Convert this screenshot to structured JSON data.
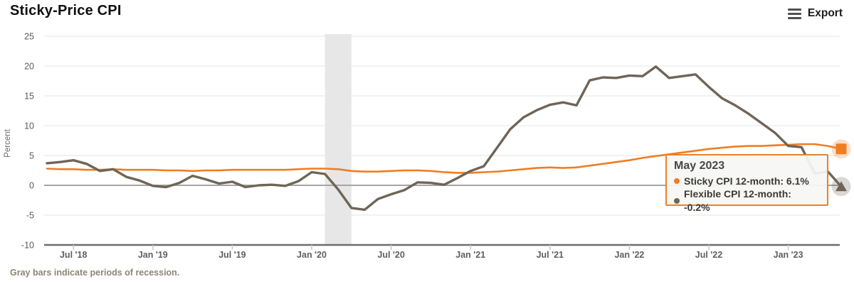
{
  "header": {
    "title": "Sticky-Price CPI",
    "export_label": "Export"
  },
  "footer": {
    "note": "Gray bars indicate periods of recession."
  },
  "tooltip": {
    "title": "May 2023",
    "items": [
      {
        "series": "Sticky CPI 12-month",
        "value": "6.1%",
        "text": "Sticky CPI 12-month: 6.1%",
        "color": "#ef7d23"
      },
      {
        "series": "Flexible CPI 12-month",
        "value": "-0.2%",
        "text": "Flexible CPI 12-month: -0.2%",
        "color": "#6e6558"
      }
    ]
  },
  "colors": {
    "grid": "#e4e4e4",
    "zero_line": "#a5a5a5",
    "axis": "#6d6d6d",
    "tick": "#c9c9c9",
    "recession": "#e7e7e7",
    "y_label": "#5a5a5a",
    "x_label": "#5f5f5f",
    "axis_title": "#6a6a6a"
  },
  "chart_data": {
    "type": "line",
    "title": "Sticky-Price CPI",
    "ylabel": "Percent",
    "xlabel": "",
    "ylim": [
      -10,
      25
    ],
    "y_ticks": [
      25,
      20,
      15,
      10,
      5,
      0,
      -5,
      -10
    ],
    "grid": true,
    "legend_position": "none",
    "months": [
      "2018-05",
      "2018-06",
      "2018-07",
      "2018-08",
      "2018-09",
      "2018-10",
      "2018-11",
      "2018-12",
      "2019-01",
      "2019-02",
      "2019-03",
      "2019-04",
      "2019-05",
      "2019-06",
      "2019-07",
      "2019-08",
      "2019-09",
      "2019-10",
      "2019-11",
      "2019-12",
      "2020-01",
      "2020-02",
      "2020-03",
      "2020-04",
      "2020-05",
      "2020-06",
      "2020-07",
      "2020-08",
      "2020-09",
      "2020-10",
      "2020-11",
      "2020-12",
      "2021-01",
      "2021-02",
      "2021-03",
      "2021-04",
      "2021-05",
      "2021-06",
      "2021-07",
      "2021-08",
      "2021-09",
      "2021-10",
      "2021-11",
      "2021-12",
      "2022-01",
      "2022-02",
      "2022-03",
      "2022-04",
      "2022-05",
      "2022-06",
      "2022-07",
      "2022-08",
      "2022-09",
      "2022-10",
      "2022-11",
      "2022-12",
      "2023-01",
      "2023-02",
      "2023-03",
      "2023-04",
      "2023-05"
    ],
    "x_ticks": [
      {
        "month": "2018-07",
        "label": "Jul '18"
      },
      {
        "month": "2019-01",
        "label": "Jan '19"
      },
      {
        "month": "2019-07",
        "label": "Jul '19"
      },
      {
        "month": "2020-01",
        "label": "Jan '20"
      },
      {
        "month": "2020-07",
        "label": "Jul '20"
      },
      {
        "month": "2021-01",
        "label": "Jan '21"
      },
      {
        "month": "2021-07",
        "label": "Jul '21"
      },
      {
        "month": "2022-01",
        "label": "Jan '22"
      },
      {
        "month": "2022-07",
        "label": "Jul '22"
      },
      {
        "month": "2023-01",
        "label": "Jan '23"
      }
    ],
    "recession_bands": [
      {
        "from": "2020-02",
        "to": "2020-04"
      }
    ],
    "series": [
      {
        "name": "Sticky CPI 12-month",
        "color": "#ef7d23",
        "end_marker": "square",
        "values": [
          2.8,
          2.7,
          2.7,
          2.6,
          2.6,
          2.7,
          2.6,
          2.6,
          2.6,
          2.5,
          2.5,
          2.4,
          2.5,
          2.5,
          2.6,
          2.6,
          2.6,
          2.6,
          2.6,
          2.7,
          2.8,
          2.8,
          2.7,
          2.4,
          2.3,
          2.3,
          2.4,
          2.5,
          2.5,
          2.4,
          2.2,
          2.1,
          2.1,
          2.2,
          2.3,
          2.5,
          2.7,
          2.9,
          3.0,
          2.9,
          3.0,
          3.3,
          3.6,
          3.9,
          4.2,
          4.6,
          4.9,
          5.2,
          5.5,
          5.8,
          6.1,
          6.3,
          6.5,
          6.6,
          6.6,
          6.7,
          6.8,
          6.9,
          6.9,
          6.6,
          6.1
        ]
      },
      {
        "name": "Flexible CPI 12-month",
        "color": "#6e6558",
        "end_marker": "triangle",
        "values": [
          3.7,
          3.9,
          4.2,
          3.6,
          2.4,
          2.7,
          1.4,
          0.8,
          -0.1,
          -0.3,
          0.4,
          1.6,
          1.0,
          0.3,
          0.6,
          -0.3,
          0.0,
          0.1,
          -0.1,
          0.7,
          2.2,
          1.9,
          -0.7,
          -3.8,
          -4.1,
          -2.3,
          -1.5,
          -0.8,
          0.5,
          0.4,
          0.1,
          1.2,
          2.4,
          3.2,
          6.3,
          9.4,
          11.4,
          12.6,
          13.5,
          13.9,
          13.4,
          17.6,
          18.1,
          18.0,
          18.4,
          18.3,
          19.9,
          18.0,
          18.3,
          18.6,
          16.5,
          14.6,
          13.4,
          12.0,
          10.4,
          8.8,
          6.6,
          6.4,
          2.0,
          2.3,
          -0.2
        ]
      }
    ]
  }
}
